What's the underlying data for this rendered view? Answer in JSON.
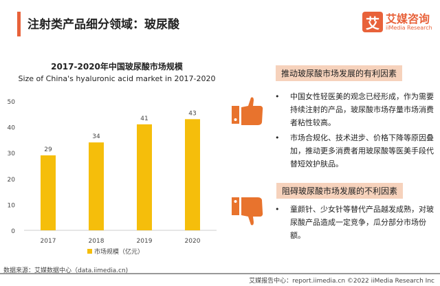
{
  "header": {
    "title": "注射类产品细分领域：玻尿酸",
    "logo_mark": "艾",
    "logo_cn": "艾媒咨询",
    "logo_en": "iiMedia Research"
  },
  "chart_data": {
    "type": "bar",
    "title": "2017-2020年中国玻尿酸市场规模",
    "subtitle": "Size of China's hyaluronic acid market in 2017-2020",
    "categories": [
      "2017",
      "2018",
      "2019",
      "2020"
    ],
    "values": [
      29,
      34,
      41,
      43
    ],
    "ylim": [
      0,
      50
    ],
    "yticks": [
      0,
      10,
      20,
      30,
      40,
      50
    ],
    "legend": "市场规模（亿元）",
    "legend_position": "bottom",
    "color": "#F5BE0B"
  },
  "favorable": {
    "heading": "推动玻尿酸市场发展的有利因素",
    "items": [
      "中国女性轻医美的观念已经形成，作为需要持续注射的产品，玻尿酸市场存量市场消费者粘性较高。",
      "市场合规化、技术进步、价格下降等原因叠加，推动更多消费者用玻尿酸等医美手段代替短效护肤品。"
    ]
  },
  "unfavorable": {
    "heading": "阻碍玻尿酸市场发展的不利因素",
    "items": [
      "童颜针、少女针等替代产品越发成熟，对玻尿酸产品造成一定竞争，瓜分部分市场份额。"
    ]
  },
  "source": "数据来源：艾媒数据中心（data.iimedia.cn)",
  "footer": "艾媒报告中心：report.iimedia.cn  ©2022  iiMedia Research Inc",
  "colors": {
    "accent": "#E8623A",
    "icon": "#E8732D",
    "highlight": "#F6D2BC"
  }
}
